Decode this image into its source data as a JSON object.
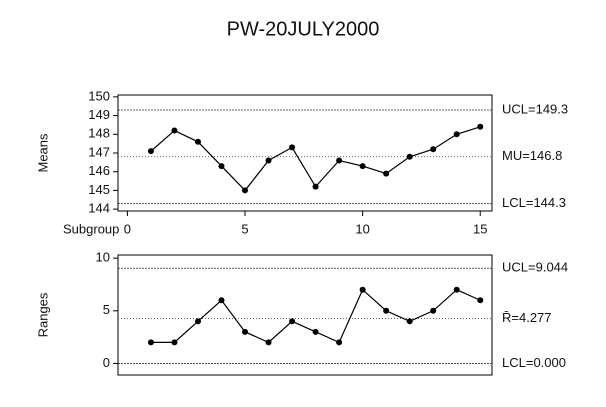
{
  "chart_data": [
    {
      "type": "line",
      "title": "PW-20JULY2000",
      "x_label": "Subgroup",
      "y_label": "Means",
      "color": "#000000",
      "x": [
        1,
        2,
        3,
        4,
        5,
        6,
        7,
        8,
        9,
        10,
        11,
        12,
        13,
        14,
        15
      ],
      "values": [
        147.1,
        148.2,
        147.6,
        146.3,
        145.0,
        146.6,
        147.3,
        145.2,
        146.6,
        146.3,
        145.9,
        146.8,
        147.2,
        148.0,
        148.4
      ],
      "xlim": [
        -0.4,
        15.5
      ],
      "xticks": [
        0,
        5,
        10,
        15
      ],
      "ylim": [
        143.9,
        150.1
      ],
      "yticks": [
        144,
        145,
        146,
        147,
        148,
        149,
        150
      ],
      "limits": [
        {
          "value": 149.3,
          "label": "UCL=149.3"
        },
        {
          "value": 146.8,
          "label": "MU=146.8"
        },
        {
          "value": 144.3,
          "label": "LCL=144.3"
        }
      ]
    },
    {
      "type": "line",
      "y_label": "Ranges",
      "color": "#000000",
      "x": [
        1,
        2,
        3,
        4,
        5,
        6,
        7,
        8,
        9,
        10,
        11,
        12,
        13,
        14,
        15
      ],
      "values": [
        2,
        2,
        4,
        6,
        3,
        2,
        4,
        3,
        2,
        7,
        5,
        4,
        5,
        7,
        6
      ],
      "xlim": [
        -0.4,
        15.5
      ],
      "ylim": [
        -1.1,
        10.3
      ],
      "yticks": [
        0,
        5,
        10
      ],
      "limits": [
        {
          "value": 9.044,
          "label": "UCL=9.044"
        },
        {
          "value": 4.277,
          "label": "R̄=4.277"
        },
        {
          "value": 0.0,
          "label": "LCL=0.000"
        }
      ]
    }
  ]
}
